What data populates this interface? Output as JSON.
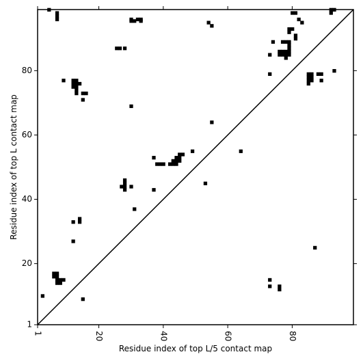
{
  "chart_data": {
    "type": "scatter",
    "title": "",
    "xlabel": "Residue index of top L/5 contact map",
    "ylabel": "Residue index of top L contact map",
    "xlim": [
      1,
      99
    ],
    "ylim": [
      1,
      99
    ],
    "x_ticks": [
      1,
      20,
      40,
      60,
      80
    ],
    "y_ticks": [
      1,
      20,
      40,
      60,
      80
    ],
    "x_tick_rotation": 90,
    "grid": false,
    "diagonal": true,
    "marker_color": "#000000",
    "series": [
      {
        "points": [
          [
            4.5,
            99
          ],
          [
            7,
            98
          ],
          [
            7,
            97
          ],
          [
            7,
            96
          ],
          [
            30,
            96
          ],
          [
            30,
            95.5
          ],
          [
            31,
            95.5
          ],
          [
            32,
            96
          ],
          [
            33,
            96
          ],
          [
            33,
            95.5
          ],
          [
            54,
            95
          ],
          [
            55,
            94
          ],
          [
            25.5,
            87
          ],
          [
            26.5,
            87
          ],
          [
            28,
            87
          ],
          [
            9,
            77
          ],
          [
            12,
            77
          ],
          [
            13,
            77
          ],
          [
            12,
            76
          ],
          [
            13,
            76
          ],
          [
            14,
            76
          ],
          [
            12,
            75
          ],
          [
            13,
            75
          ],
          [
            13,
            74
          ],
          [
            13,
            73
          ],
          [
            15,
            73
          ],
          [
            16,
            73
          ],
          [
            15,
            71
          ],
          [
            30,
            69
          ],
          [
            55,
            64
          ],
          [
            37,
            53
          ],
          [
            38,
            51
          ],
          [
            39,
            51
          ],
          [
            40,
            51
          ],
          [
            42,
            51
          ],
          [
            43,
            51
          ],
          [
            44,
            51
          ],
          [
            43,
            52
          ],
          [
            44,
            52
          ],
          [
            45,
            52
          ],
          [
            44,
            53
          ],
          [
            45,
            53
          ],
          [
            45,
            54
          ],
          [
            46,
            54
          ],
          [
            49,
            55
          ],
          [
            64,
            55
          ],
          [
            28,
            46
          ],
          [
            28,
            45
          ],
          [
            28,
            44
          ],
          [
            27,
            44
          ],
          [
            28,
            43
          ],
          [
            30,
            44
          ],
          [
            37,
            43
          ],
          [
            53,
            45
          ],
          [
            31,
            37
          ],
          [
            12,
            33
          ],
          [
            14,
            33
          ],
          [
            14,
            34
          ],
          [
            12,
            27
          ],
          [
            6,
            17
          ],
          [
            7,
            17
          ],
          [
            6,
            16
          ],
          [
            7,
            16
          ],
          [
            7,
            15
          ],
          [
            8,
            15
          ],
          [
            9,
            15
          ],
          [
            7,
            14
          ],
          [
            8,
            14
          ],
          [
            2.5,
            10
          ],
          [
            15,
            9
          ],
          [
            73,
            15
          ],
          [
            73,
            13
          ],
          [
            76,
            13
          ],
          [
            76,
            12
          ],
          [
            87,
            25
          ],
          [
            80,
            98
          ],
          [
            81,
            98
          ],
          [
            82,
            96
          ],
          [
            83,
            95
          ],
          [
            79,
            93
          ],
          [
            80,
            93
          ],
          [
            79,
            92
          ],
          [
            81,
            91
          ],
          [
            81,
            90
          ],
          [
            74,
            89
          ],
          [
            77,
            89
          ],
          [
            78,
            89
          ],
          [
            79,
            89
          ],
          [
            79,
            88
          ],
          [
            79,
            87
          ],
          [
            76,
            86
          ],
          [
            77,
            86
          ],
          [
            78,
            86
          ],
          [
            79,
            86
          ],
          [
            76,
            85
          ],
          [
            77,
            85
          ],
          [
            78,
            85
          ],
          [
            79,
            85
          ],
          [
            73,
            85
          ],
          [
            78,
            84
          ],
          [
            73,
            79
          ],
          [
            85,
            79
          ],
          [
            86,
            79
          ],
          [
            88,
            79
          ],
          [
            89,
            79
          ],
          [
            85,
            78
          ],
          [
            86,
            78
          ],
          [
            85,
            77
          ],
          [
            86,
            77
          ],
          [
            89,
            77
          ],
          [
            85,
            76
          ],
          [
            93,
            80
          ],
          [
            92,
            99
          ],
          [
            93,
            99
          ],
          [
            92,
            98
          ]
        ]
      }
    ]
  }
}
